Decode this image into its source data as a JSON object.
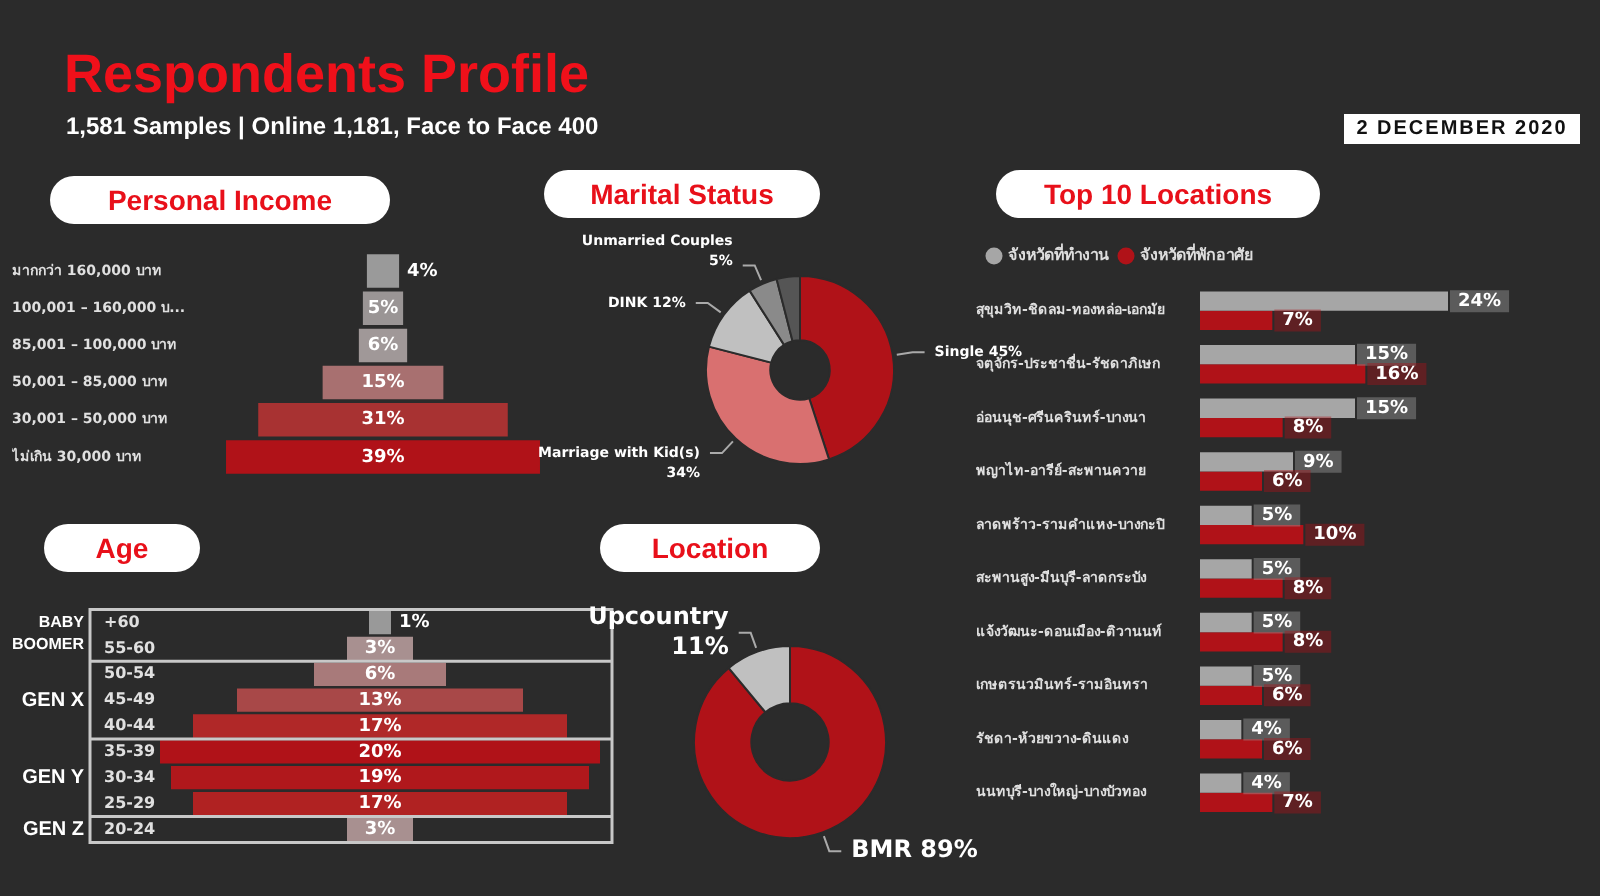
{
  "chart_data": [
    {
      "type": "other",
      "title": "Respondents Profile",
      "subtitle": "1,581 Samples | Online 1,181, Face to Face 400",
      "annotations": [
        "2 DECEMBER 2020"
      ]
    },
    {
      "type": "other",
      "title": "Personal Income",
      "categories": [
        "มากกว่า 160,000 บาท",
        "100,001 – 160,000 บ...",
        "85,001 – 100,000 บาท",
        "50,001 – 85,000 บาท",
        "30,001 – 50,000 บาท",
        "ไม่เกิน 30,000 บาท"
      ],
      "values": [
        4,
        5,
        6,
        15,
        31,
        39
      ],
      "colors": [
        "#9a9a9a",
        "#9a9595",
        "#a09898",
        "#a87070",
        "#a83232",
        "#b01218"
      ],
      "value_labels": [
        "4%",
        "5%",
        "6%",
        "15%",
        "31%",
        "39%"
      ],
      "legend": false
    },
    {
      "type": "donut",
      "title": "Marital Status",
      "categories": [
        "Single",
        "Marriage with Kid(s)",
        "DINK",
        "Unmarried Couples",
        null
      ],
      "values": [
        45,
        34,
        12,
        5,
        4
      ],
      "colors": [
        "#b01218",
        "#d97070",
        "#c0c0c0",
        "#8a8a8a",
        "#555555"
      ],
      "value_labels": [
        "45%",
        "34%",
        "12%",
        "5%",
        null
      ],
      "legend": false
    },
    {
      "type": "bar",
      "title": "Top 10 Locations",
      "orientation": "horizontal",
      "categories": [
        "สุขุมวิท-ชิดลม-ทองหล่อ-เอกมัย",
        "จตุจักร-ประชาชื่น-รัชดาภิเษก",
        "อ่อนนุช-ศรีนครินทร์-บางนา",
        "พญาไท-อารีย์-สะพานควาย",
        "ลาดพร้าว-รามคำแหง-บางกะปิ",
        "สะพานสูง-มีนบุรี-ลาดกระบัง",
        "แจ้งวัฒนะ-ดอนเมือง-ติวานนท์",
        "เกษตรนวมินทร์-รามอินทรา",
        "รัชดา-ห้วยขวาง-ดินแดง",
        "นนทบุรี-บางใหญ่-บางบัวทอง"
      ],
      "series": [
        {
          "name": "จังหวัดที่ทำงาน",
          "color": "#a6a6a6",
          "values": [
            24,
            15,
            15,
            9,
            5,
            5,
            5,
            5,
            4,
            4
          ],
          "value_labels": [
            "24%",
            "15%",
            "15%",
            "9%",
            "5%",
            "5%",
            "5%",
            "5%",
            "4%",
            "4%"
          ]
        },
        {
          "name": "จังหวัดที่พักอาศัย",
          "color": "#b01218",
          "values": [
            7,
            16,
            8,
            6,
            10,
            8,
            8,
            6,
            6,
            7
          ],
          "value_labels": [
            "7%",
            "16%",
            "8%",
            "6%",
            "10%",
            "8%",
            "8%",
            "6%",
            "6%",
            "7%"
          ]
        }
      ],
      "tick_labels": "y",
      "legend": "top left"
    },
    {
      "type": "other",
      "title": "Age",
      "categories": [
        "+60",
        "55-60",
        "50-54",
        "45-49",
        "40-44",
        "35-39",
        "30-34",
        "25-29",
        "20-24"
      ],
      "values": [
        1,
        3,
        6,
        13,
        17,
        20,
        19,
        17,
        3
      ],
      "colors": [
        "#999999",
        "#a89090",
        "#a87a7a",
        "#a84848",
        "#b02828",
        "#b01218",
        "#b0181c",
        "#b02222",
        "#a89090"
      ],
      "value_labels": [
        "1%",
        "3%",
        "6%",
        "13%",
        "17%",
        "20%",
        "19%",
        "17%",
        "3%"
      ],
      "legend": false,
      "annotations": [
        "BABY BOOMER",
        "GEN X",
        "GEN Y",
        "GEN Z"
      ]
    },
    {
      "type": "donut",
      "title": "Location",
      "categories": [
        "BMR",
        "Upcountry"
      ],
      "values": [
        89,
        11
      ],
      "colors": [
        "#b01218",
        "#c0c0c0"
      ],
      "value_labels": [
        "89%",
        "11%"
      ],
      "legend": false
    }
  ]
}
